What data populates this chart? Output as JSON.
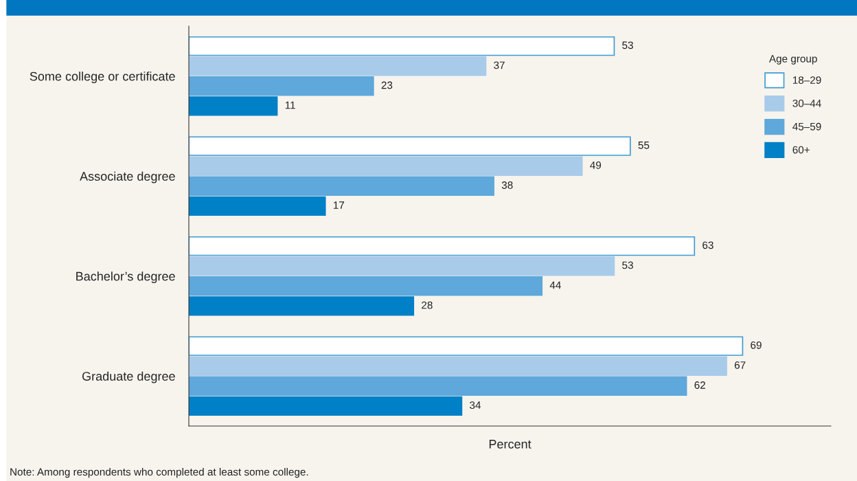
{
  "chart_data": {
    "type": "bar",
    "orientation": "horizontal",
    "xlabel": "Percent",
    "legend_title": "Age group",
    "legend": "right",
    "data_labels": true,
    "tick_labels": "y",
    "grid": false,
    "xlim": [
      0,
      80
    ],
    "categories": [
      "Some college or certificate",
      "Associate degree",
      "Bachelor’s degree",
      "Graduate degree"
    ],
    "series": [
      {
        "name": "18–29",
        "color": "#ffffff",
        "values": [
          53,
          55,
          63,
          69
        ]
      },
      {
        "name": "30–44",
        "color": "#a9cbea",
        "values": [
          37,
          49,
          53,
          67
        ]
      },
      {
        "name": "45–59",
        "color": "#5ea8db",
        "values": [
          23,
          38,
          44,
          62
        ]
      },
      {
        "name": "60+",
        "color": "#0080c6",
        "values": [
          11,
          17,
          28,
          34
        ]
      }
    ],
    "annotations": [
      "Note: Among respondents who completed at least some college."
    ]
  }
}
